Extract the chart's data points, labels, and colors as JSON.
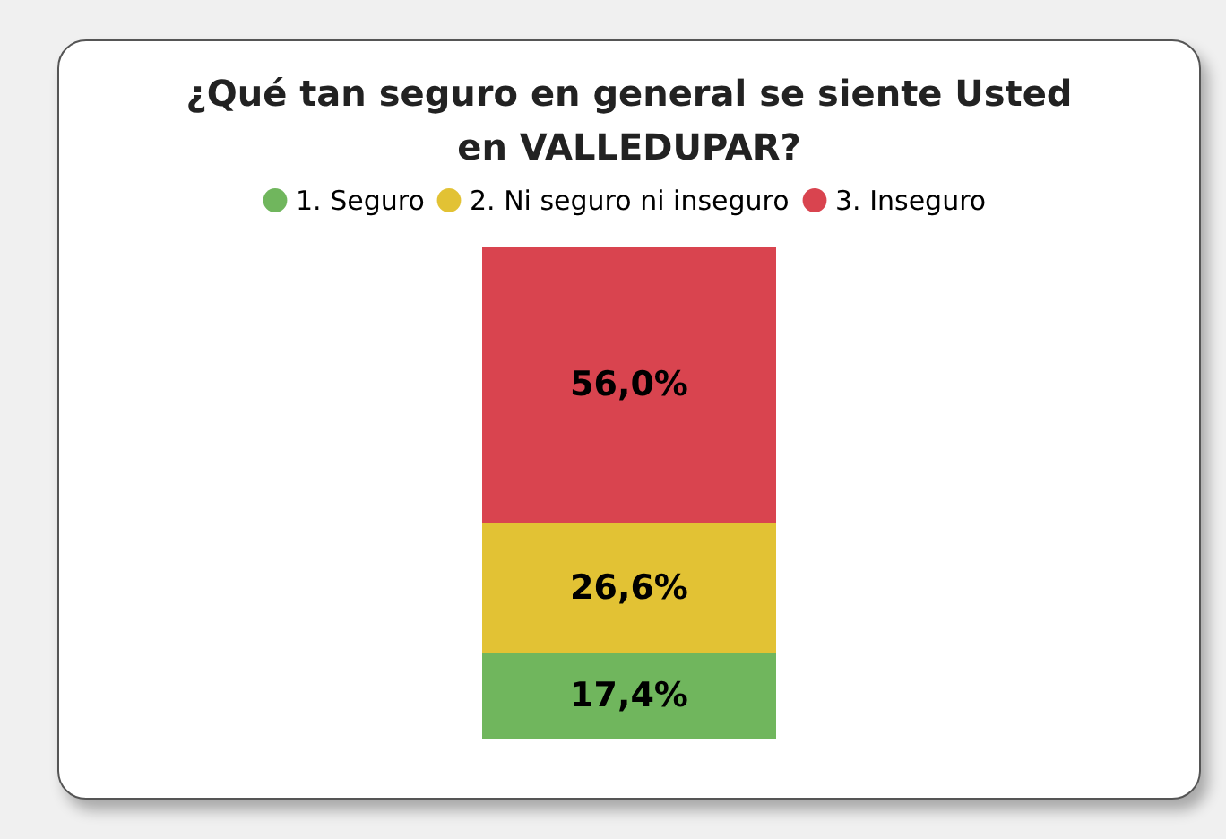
{
  "chart_data": {
    "type": "bar",
    "title": "¿Qué tan seguro en general se siente Usted en VALLEDUPAR?",
    "categories": [
      null
    ],
    "stacked": true,
    "legend": "top",
    "series": [
      {
        "name": "1. Seguro",
        "color": "#70b65d",
        "values": [
          17.4
        ],
        "value_labels": [
          "17,4%"
        ]
      },
      {
        "name": "2. Ni seguro ni inseguro",
        "color": "#e2c234",
        "values": [
          26.6
        ],
        "value_labels": [
          "26,6%"
        ]
      },
      {
        "name": "3. Inseguro",
        "color": "#d9444f",
        "values": [
          56.0
        ],
        "value_labels": [
          "56,0%"
        ]
      }
    ]
  }
}
